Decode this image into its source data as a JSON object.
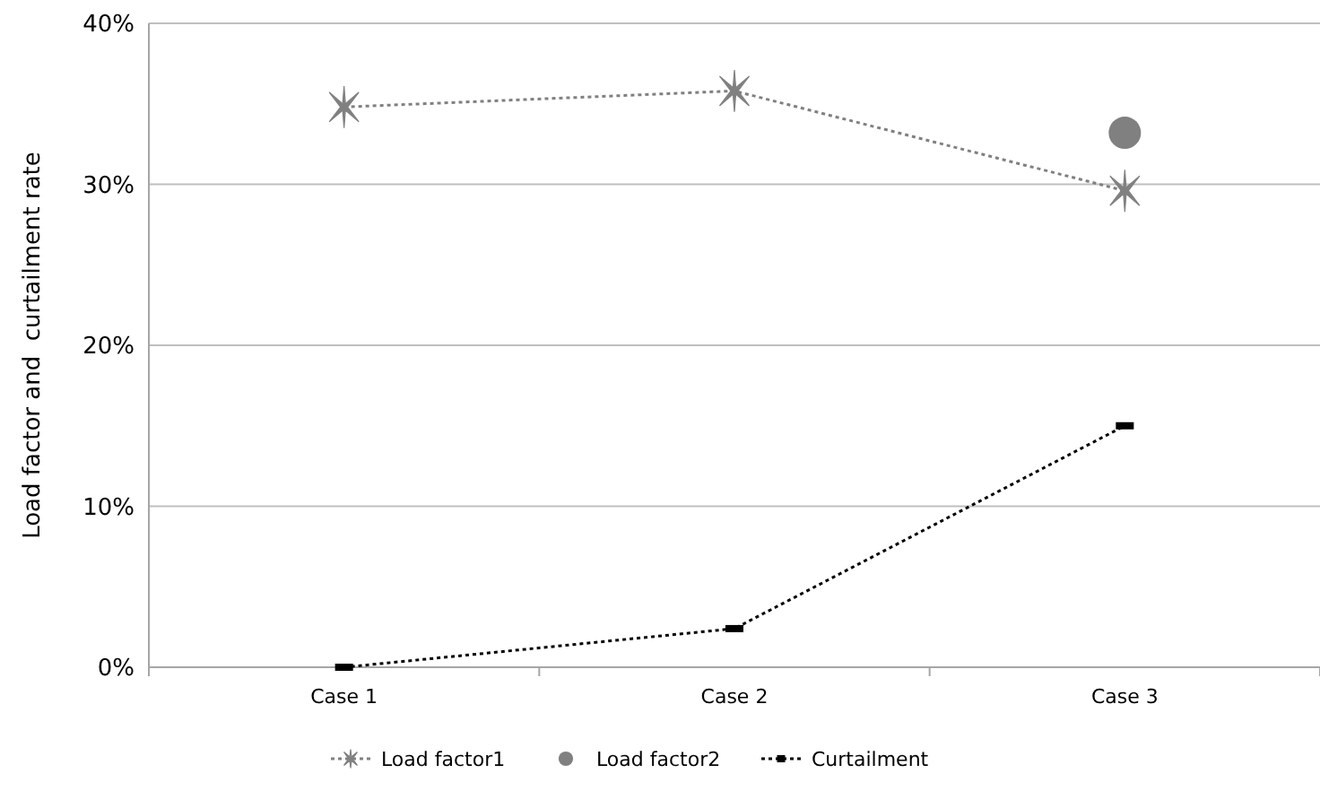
{
  "chart_data": {
    "type": "line",
    "ylabel": "Load factor and  curtailment rate",
    "categories": [
      "Case 1",
      "Case 2",
      "Case 3"
    ],
    "ylim": [
      0,
      40
    ],
    "yticks": [
      {
        "value": 0,
        "label": "0%"
      },
      {
        "value": 10,
        "label": "10%"
      },
      {
        "value": 20,
        "label": "20%"
      },
      {
        "value": 30,
        "label": "30%"
      },
      {
        "value": 40,
        "label": "40%"
      }
    ],
    "grid": "y",
    "legend": "bottom",
    "series": [
      {
        "name": "Load factor1",
        "color": "#808080",
        "values": [
          34.8,
          35.8,
          29.6
        ],
        "marker": "cross",
        "line_style": "dotted"
      },
      {
        "name": "Load factor2",
        "type": "scatter",
        "color": "#808080",
        "values": [
          null,
          null,
          33.2
        ],
        "marker": "circle"
      },
      {
        "name": "Curtailment",
        "color": "#000000",
        "values": [
          0,
          2.4,
          15.0
        ],
        "marker": "square",
        "line_style": "dotted"
      }
    ]
  }
}
